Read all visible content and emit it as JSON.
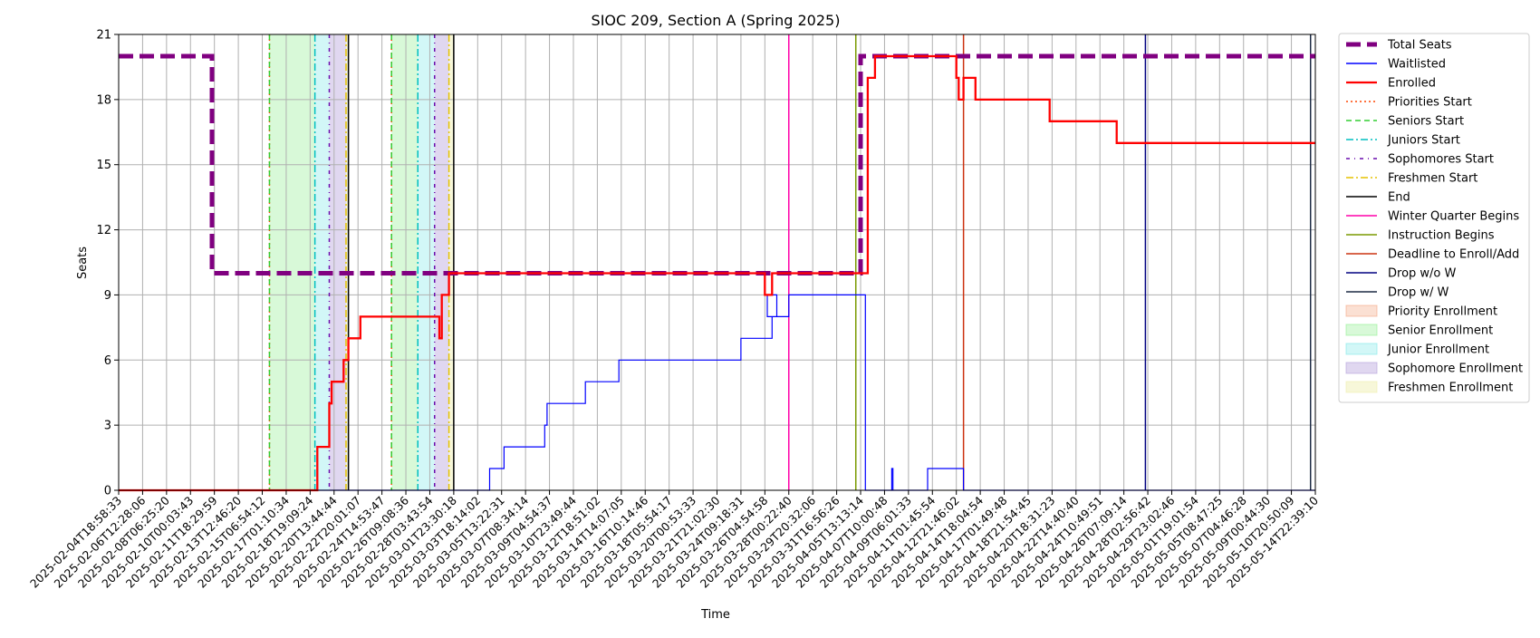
{
  "chart_data": {
    "type": "line",
    "title": "SIOC 209, Section A (Spring 2025)",
    "xlabel": "Time",
    "ylabel": "Seats",
    "ylim": [
      0,
      21
    ],
    "yticks": [
      0,
      3,
      6,
      9,
      12,
      15,
      18,
      21
    ],
    "xlim": [
      "2025-02-04T18:58:33",
      "2025-05-14T22:39:10"
    ],
    "xtick_labels": [
      "2025-02-04T18:58:33",
      "2025-02-06T12:28:06",
      "2025-02-08T06:25:20",
      "2025-02-10T00:03:43",
      "2025-02-11T18:29:59",
      "2025-02-13T12:46:20",
      "2025-02-15T06:54:12",
      "2025-02-17T01:10:34",
      "2025-02-18T19:09:24",
      "2025-02-20T13:44:44",
      "2025-02-22T20:01:07",
      "2025-02-24T14:53:47",
      "2025-02-26T09:08:36",
      "2025-02-28T03:43:54",
      "2025-03-01T23:30:18",
      "2025-03-03T18:14:02",
      "2025-03-05T13:22:31",
      "2025-03-07T08:34:14",
      "2025-03-09T04:54:37",
      "2025-03-10T23:49:44",
      "2025-03-12T18:51:02",
      "2025-03-14T14:07:05",
      "2025-03-16T10:14:46",
      "2025-03-18T05:54:17",
      "2025-03-20T00:53:33",
      "2025-03-21T21:02:30",
      "2025-03-24T09:18:31",
      "2025-03-26T04:54:58",
      "2025-03-28T00:22:40",
      "2025-03-29T20:32:06",
      "2025-03-31T16:56:26",
      "2025-04-05T13:13:14",
      "2025-04-07T10:00:48",
      "2025-04-09T06:01:33",
      "2025-04-11T01:45:54",
      "2025-04-12T21:46:02",
      "2025-04-14T18:04:54",
      "2025-04-17T01:49:48",
      "2025-04-18T21:54:45",
      "2025-04-20T18:31:23",
      "2025-04-22T14:40:40",
      "2025-04-24T10:49:51",
      "2025-04-26T07:09:14",
      "2025-04-28T02:56:42",
      "2025-04-29T23:02:46",
      "2025-05-01T19:01:54",
      "2025-05-05T08:47:25",
      "2025-05-07T04:46:28",
      "2025-05-09T00:44:30",
      "2025-05-10T20:50:09",
      "2025-05-14T22:39:10"
    ],
    "grid": true,
    "legend_placement": "outside right, top",
    "series": [
      {
        "name": "Total Seats",
        "color": "#800080",
        "style": "thick-dashed",
        "points": [
          [
            0,
            20
          ],
          [
            3.9,
            20
          ],
          [
            3.9,
            10
          ],
          [
            31.0,
            10
          ],
          [
            31.0,
            20
          ],
          [
            50,
            20
          ]
        ]
      },
      {
        "name": "Waitlisted",
        "color": "#0000ff",
        "style": "solid-thin",
        "points": [
          [
            0,
            0
          ],
          [
            15.5,
            0
          ],
          [
            15.5,
            1
          ],
          [
            16.1,
            1
          ],
          [
            16.1,
            2
          ],
          [
            17.8,
            2
          ],
          [
            17.8,
            3
          ],
          [
            17.9,
            3
          ],
          [
            17.9,
            4
          ],
          [
            19.5,
            4
          ],
          [
            19.5,
            5
          ],
          [
            20.9,
            5
          ],
          [
            20.9,
            6
          ],
          [
            26.0,
            6
          ],
          [
            26.0,
            7
          ],
          [
            27.3,
            7
          ],
          [
            27.3,
            8
          ],
          [
            27.5,
            8
          ],
          [
            27.5,
            9
          ],
          [
            27.1,
            9
          ],
          [
            27.1,
            8
          ],
          [
            28.0,
            8
          ],
          [
            28.0,
            9
          ],
          [
            31.2,
            9
          ],
          [
            31.2,
            0
          ],
          [
            32.3,
            0
          ],
          [
            32.3,
            1
          ],
          [
            32.35,
            1
          ],
          [
            32.35,
            0
          ],
          [
            33.8,
            0
          ],
          [
            33.8,
            1
          ],
          [
            35.3,
            1
          ],
          [
            35.3,
            0
          ],
          [
            50,
            0
          ]
        ]
      },
      {
        "name": "Enrolled",
        "color": "#ff0000",
        "style": "solid-thick",
        "points": [
          [
            0,
            0
          ],
          [
            8.3,
            0
          ],
          [
            8.3,
            2
          ],
          [
            8.8,
            2
          ],
          [
            8.8,
            4
          ],
          [
            8.9,
            4
          ],
          [
            8.9,
            5
          ],
          [
            9.4,
            5
          ],
          [
            9.4,
            6
          ],
          [
            9.6,
            6
          ],
          [
            9.6,
            7
          ],
          [
            10.1,
            7
          ],
          [
            10.1,
            8
          ],
          [
            13.4,
            8
          ],
          [
            13.4,
            7
          ],
          [
            13.5,
            7
          ],
          [
            13.5,
            9
          ],
          [
            13.8,
            9
          ],
          [
            13.8,
            10
          ],
          [
            27.0,
            10
          ],
          [
            27.0,
            9
          ],
          [
            27.3,
            9
          ],
          [
            27.3,
            10
          ],
          [
            31.3,
            10
          ],
          [
            31.3,
            19
          ],
          [
            31.6,
            19
          ],
          [
            31.6,
            20
          ],
          [
            35.0,
            20
          ],
          [
            35.0,
            19
          ],
          [
            35.1,
            19
          ],
          [
            35.1,
            18
          ],
          [
            35.3,
            18
          ],
          [
            35.3,
            19
          ],
          [
            35.8,
            19
          ],
          [
            35.8,
            18
          ],
          [
            38.9,
            18
          ],
          [
            38.9,
            17
          ],
          [
            41.7,
            17
          ],
          [
            41.7,
            16
          ],
          [
            50,
            16
          ]
        ]
      }
    ],
    "vertical_markers": [
      {
        "name": "Priorities Start",
        "color": "#ff4500",
        "style": "dotted",
        "x": [
          6.3,
          11.4
        ]
      },
      {
        "name": "Seniors Start",
        "color": "#32cd32",
        "style": "dashed",
        "x": [
          6.3,
          11.4
        ]
      },
      {
        "name": "Juniors Start",
        "color": "#00bfc0",
        "style": "dashdot",
        "x": [
          8.2,
          12.5
        ]
      },
      {
        "name": "Sophomores Start",
        "color": "#6a0dad",
        "style": "densedashdot",
        "x": [
          8.8,
          13.2
        ]
      },
      {
        "name": "Freshmen Start",
        "color": "#e6c200",
        "style": "dashdot",
        "x": [
          9.5,
          13.8
        ]
      },
      {
        "name": "End",
        "color": "#000000",
        "style": "solid",
        "x": [
          9.6,
          14.0
        ]
      },
      {
        "name": "Winter Quarter Begins",
        "color": "#ff00aa",
        "style": "solid",
        "x": [
          28.0
        ]
      },
      {
        "name": "Instruction Begins",
        "color": "#7a9a00",
        "style": "solid",
        "x": [
          30.8
        ]
      },
      {
        "name": "Deadline to Enroll/Add",
        "color": "#cc3311",
        "style": "solid",
        "x": [
          35.3
        ]
      },
      {
        "name": "Drop w/o W",
        "color": "#000080",
        "style": "solid",
        "x": [
          42.9
        ]
      },
      {
        "name": "Drop w/ W",
        "color": "#1c2a44",
        "style": "solid",
        "x": [
          49.8
        ]
      }
    ],
    "shaded_regions": [
      {
        "name": "Priority Enrollment",
        "color": "#f4a582",
        "opacity": 0.35,
        "ranges": []
      },
      {
        "name": "Senior Enrollment",
        "color": "#90ee90",
        "opacity": 0.35,
        "ranges": [
          [
            6.3,
            8.2
          ],
          [
            11.4,
            12.5
          ]
        ]
      },
      {
        "name": "Junior Enrollment",
        "color": "#7fe8e8",
        "opacity": 0.35,
        "ranges": [
          [
            8.2,
            8.8
          ],
          [
            12.5,
            13.2
          ]
        ]
      },
      {
        "name": "Sophomore Enrollment",
        "color": "#b19cd9",
        "opacity": 0.4,
        "ranges": [
          [
            8.8,
            9.5
          ],
          [
            13.2,
            13.8
          ]
        ]
      },
      {
        "name": "Freshmen Enrollment",
        "color": "#eeeeaa",
        "opacity": 0.45,
        "ranges": [
          [
            9.5,
            9.6
          ],
          [
            13.8,
            14.0
          ]
        ]
      }
    ]
  }
}
